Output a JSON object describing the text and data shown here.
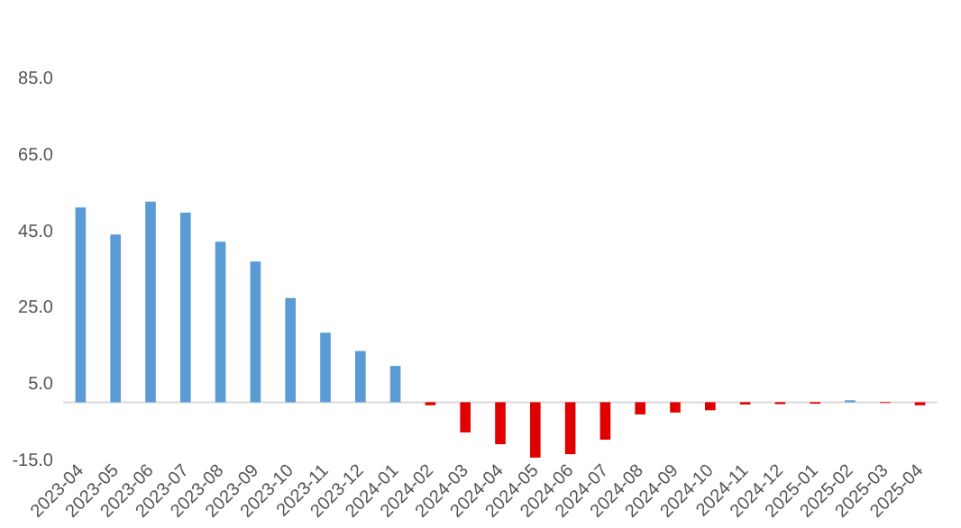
{
  "chart_data": {
    "type": "bar",
    "categories": [
      "2023-04",
      "2023-05",
      "2023-06",
      "2023-07",
      "2023-08",
      "2023-09",
      "2023-10",
      "2023-11",
      "2023-12",
      "2024-01",
      "2024-02",
      "2024-03",
      "2024-04",
      "2024-05",
      "2024-06",
      "2024-07",
      "2024-08",
      "2024-09",
      "2024-10",
      "2024-11",
      "2024-12",
      "2025-01",
      "2025-02",
      "2025-03",
      "2025-04"
    ],
    "values": [
      51.0,
      43.9,
      52.5,
      49.6,
      42.0,
      36.8,
      27.3,
      18.2,
      13.4,
      9.5,
      -0.8,
      -7.9,
      -11.0,
      -14.5,
      -13.6,
      -9.8,
      -3.2,
      -2.7,
      -2.1,
      -0.6,
      -0.5,
      -0.4,
      0.5,
      -0.2,
      -0.8
    ],
    "colors": [
      "#5b9bd5",
      "#5b9bd5",
      "#5b9bd5",
      "#5b9bd5",
      "#5b9bd5",
      "#5b9bd5",
      "#5b9bd5",
      "#5b9bd5",
      "#5b9bd5",
      "#5b9bd5",
      "#e00000",
      "#e00000",
      "#e00000",
      "#e00000",
      "#e00000",
      "#e00000",
      "#e00000",
      "#e00000",
      "#e00000",
      "#e00000",
      "#e00000",
      "#e00000",
      "#5b9bd5",
      "#e00000",
      "#e00000"
    ],
    "ylim": [
      -15,
      85
    ],
    "yticks": [
      {
        "value": -15,
        "label": "-15.0"
      },
      {
        "value": 5,
        "label": "5.0"
      },
      {
        "value": 25,
        "label": "25.0"
      },
      {
        "value": 45,
        "label": "45.0"
      },
      {
        "value": 65,
        "label": "65.0"
      },
      {
        "value": 85,
        "label": "85.0"
      }
    ],
    "ref_lines": [
      {
        "axis": "y",
        "value": 0,
        "color": "#d9d9d9"
      }
    ],
    "grid": false
  }
}
